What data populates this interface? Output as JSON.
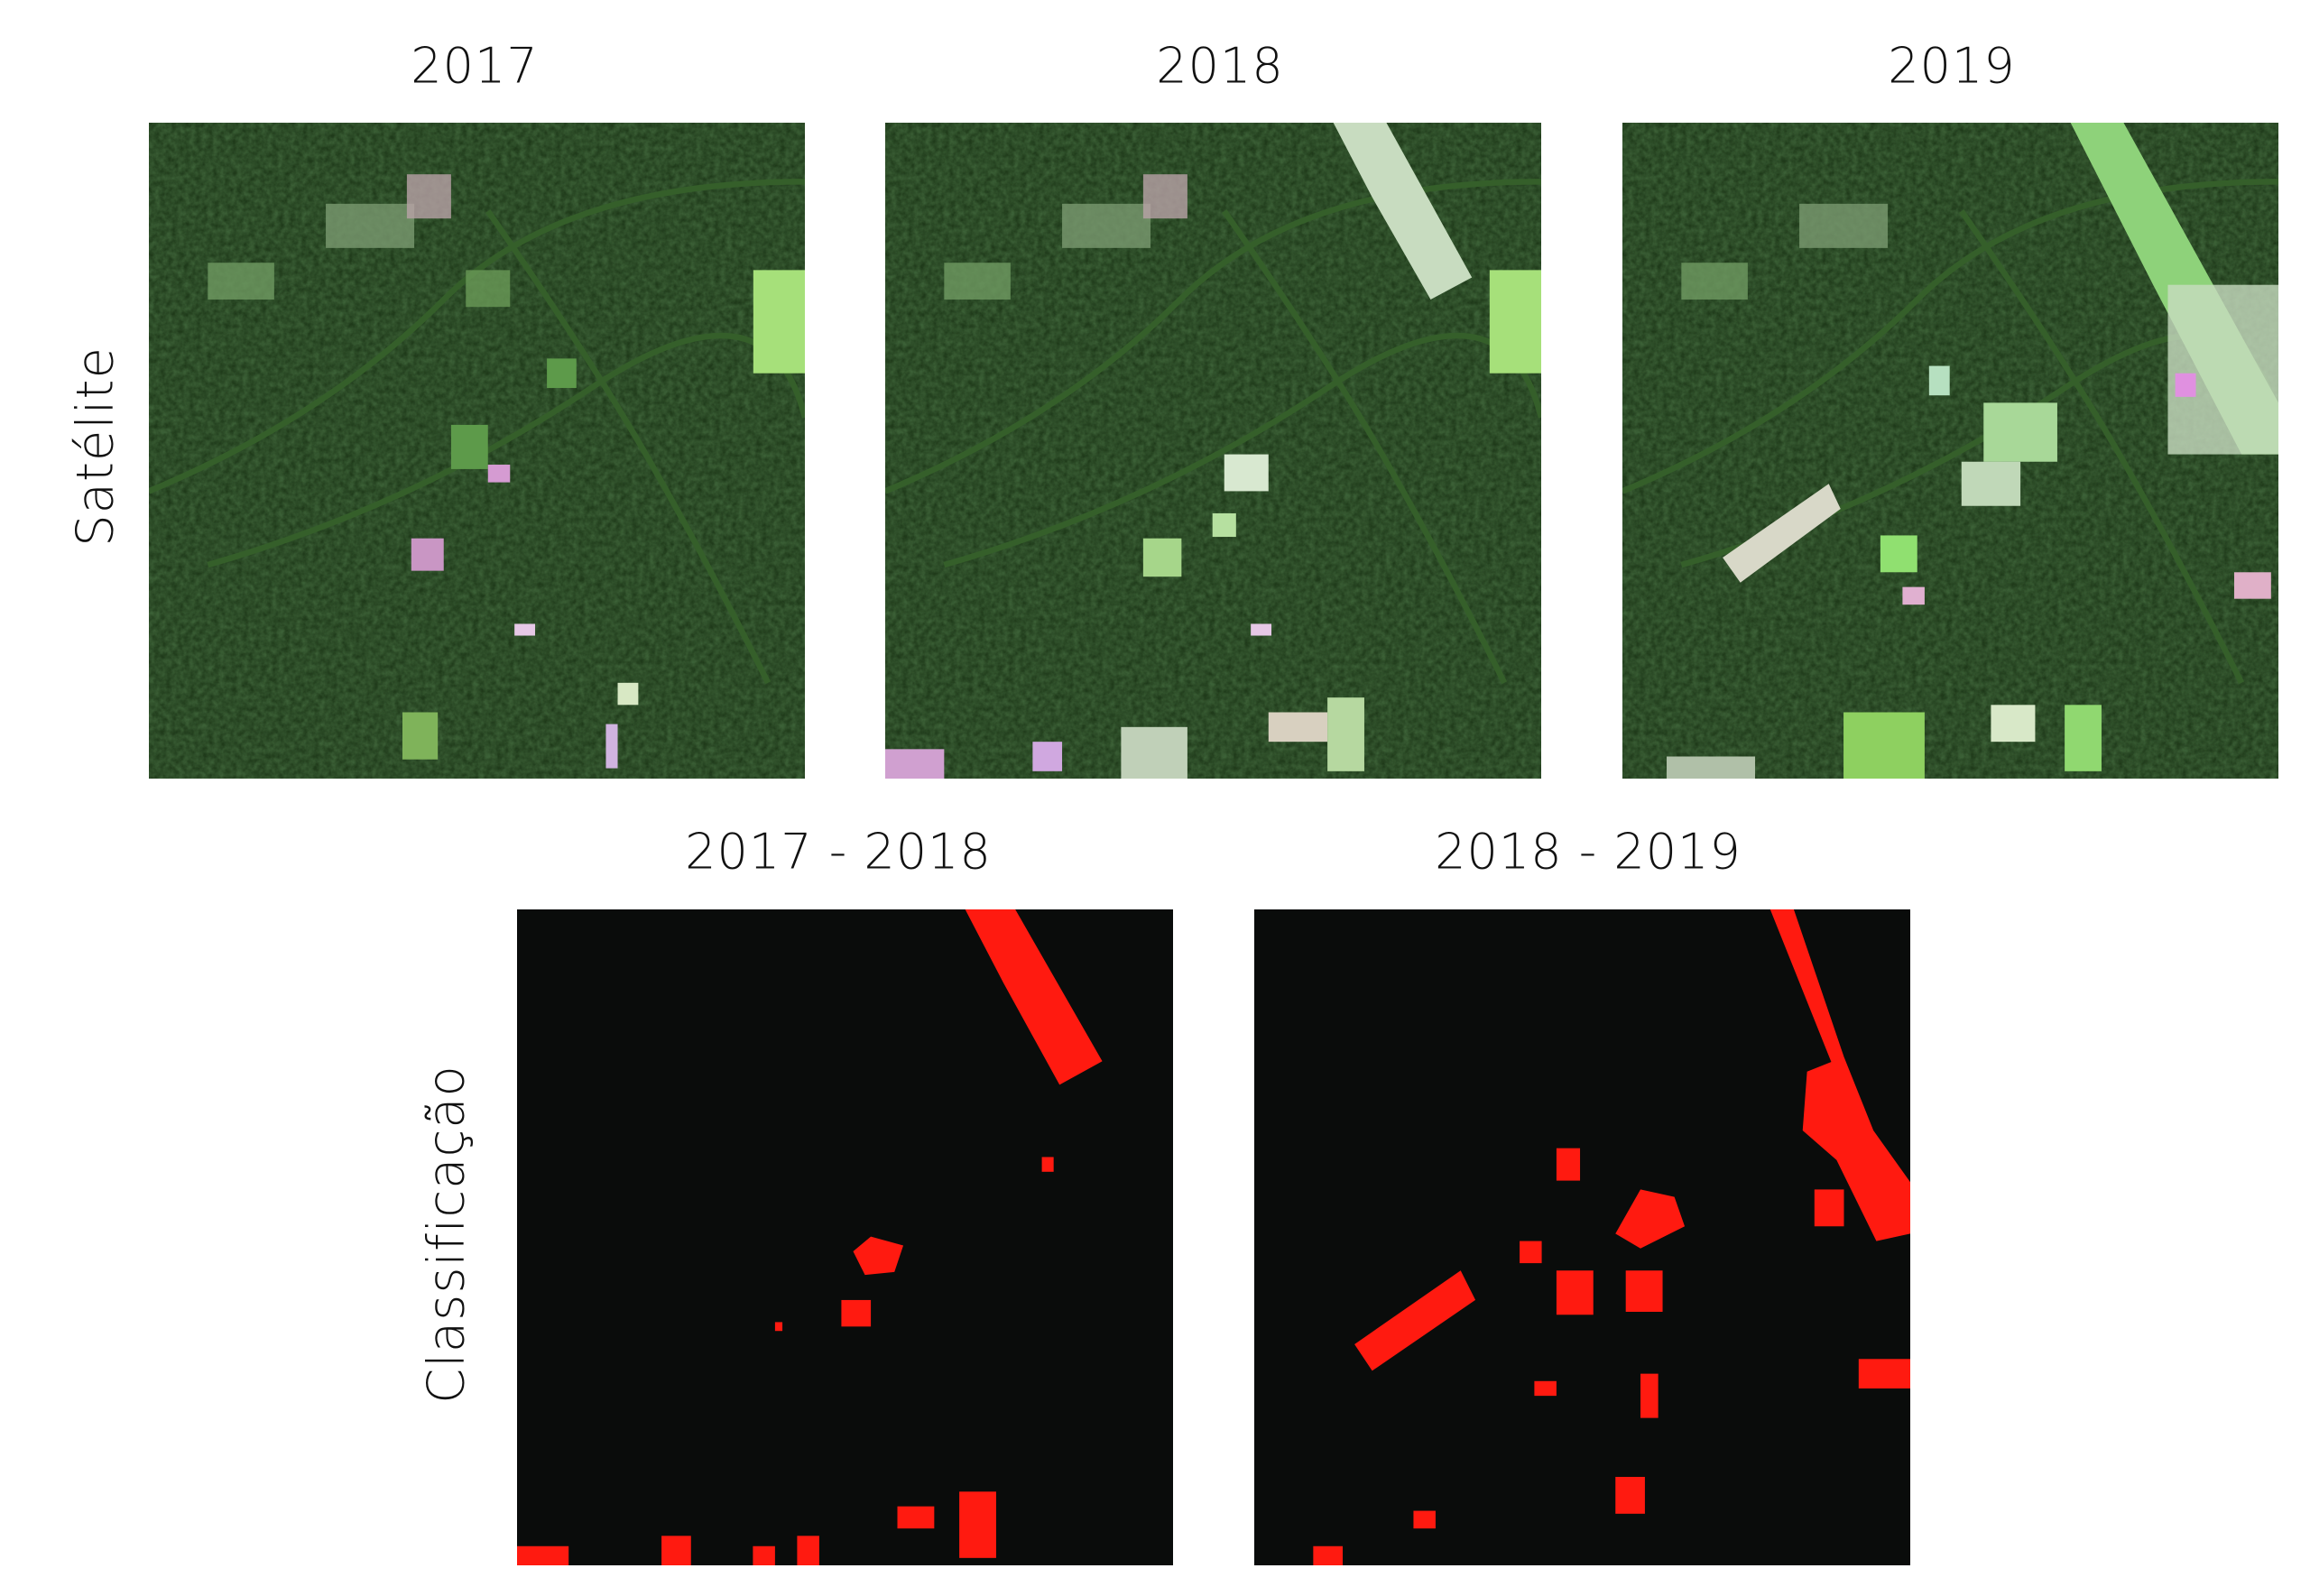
{
  "columns": [
    "2017",
    "2018",
    "2019"
  ],
  "pairs": [
    "2017 - 2018",
    "2018 - 2019"
  ],
  "rows": [
    "Satélite",
    "Classificação"
  ]
}
